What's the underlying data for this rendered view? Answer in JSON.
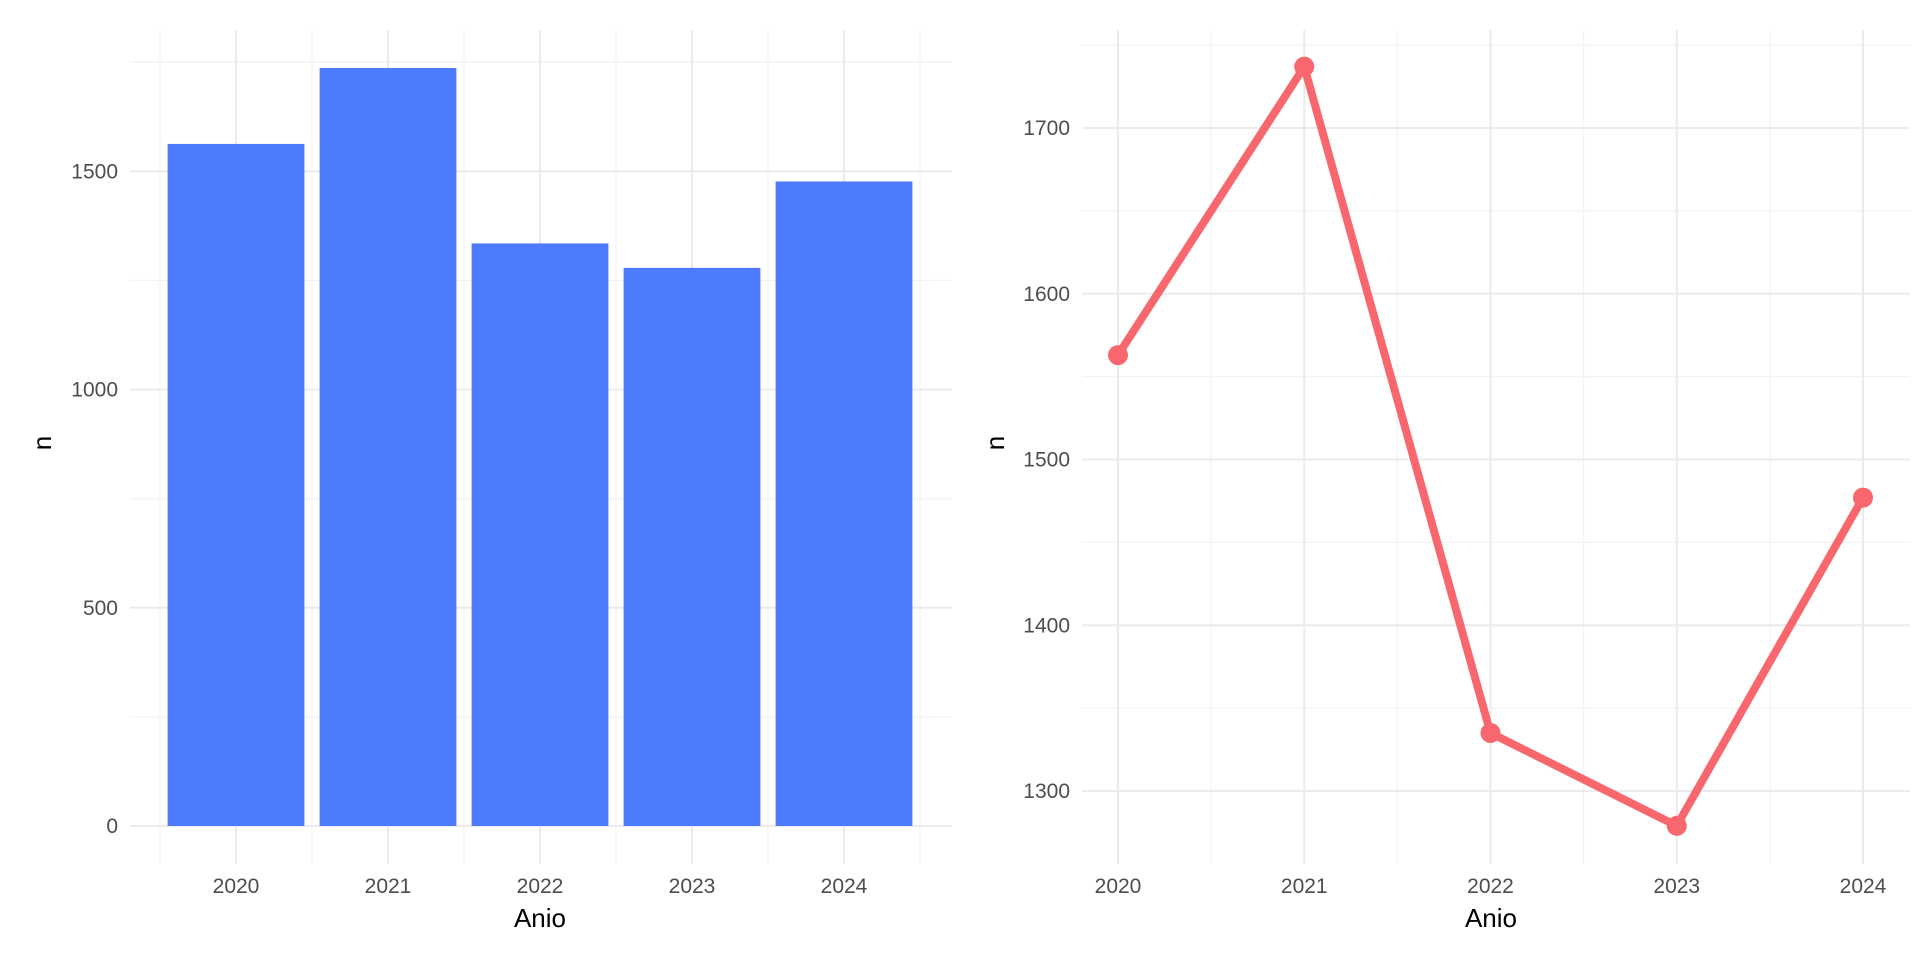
{
  "colors": {
    "bar_fill": "#4e7bfd",
    "line_color": "#f8676d",
    "grid_major": "#ebebeb",
    "grid_minor": "#f3f3f3",
    "tick_text": "#4d4d4d",
    "background": "#ffffff"
  },
  "chart_data": [
    {
      "type": "bar",
      "xlabel": "Anio",
      "ylabel": "n",
      "categories": [
        "2020",
        "2021",
        "2022",
        "2023",
        "2024"
      ],
      "values": [
        1563,
        1737,
        1335,
        1279,
        1477
      ],
      "ylim": [
        0,
        1737
      ],
      "yticks": [
        0,
        500,
        1000,
        1500
      ],
      "grid": true
    },
    {
      "type": "line",
      "xlabel": "Anio",
      "ylabel": "n",
      "x": [
        2020,
        2021,
        2022,
        2023,
        2024
      ],
      "y": [
        1563,
        1737,
        1335,
        1279,
        1477
      ],
      "xticks": [
        2020,
        2021,
        2022,
        2023,
        2024
      ],
      "yticks": [
        1300,
        1400,
        1500,
        1600,
        1700
      ],
      "ylim": [
        1279,
        1737
      ],
      "markers": true,
      "grid": true
    }
  ]
}
